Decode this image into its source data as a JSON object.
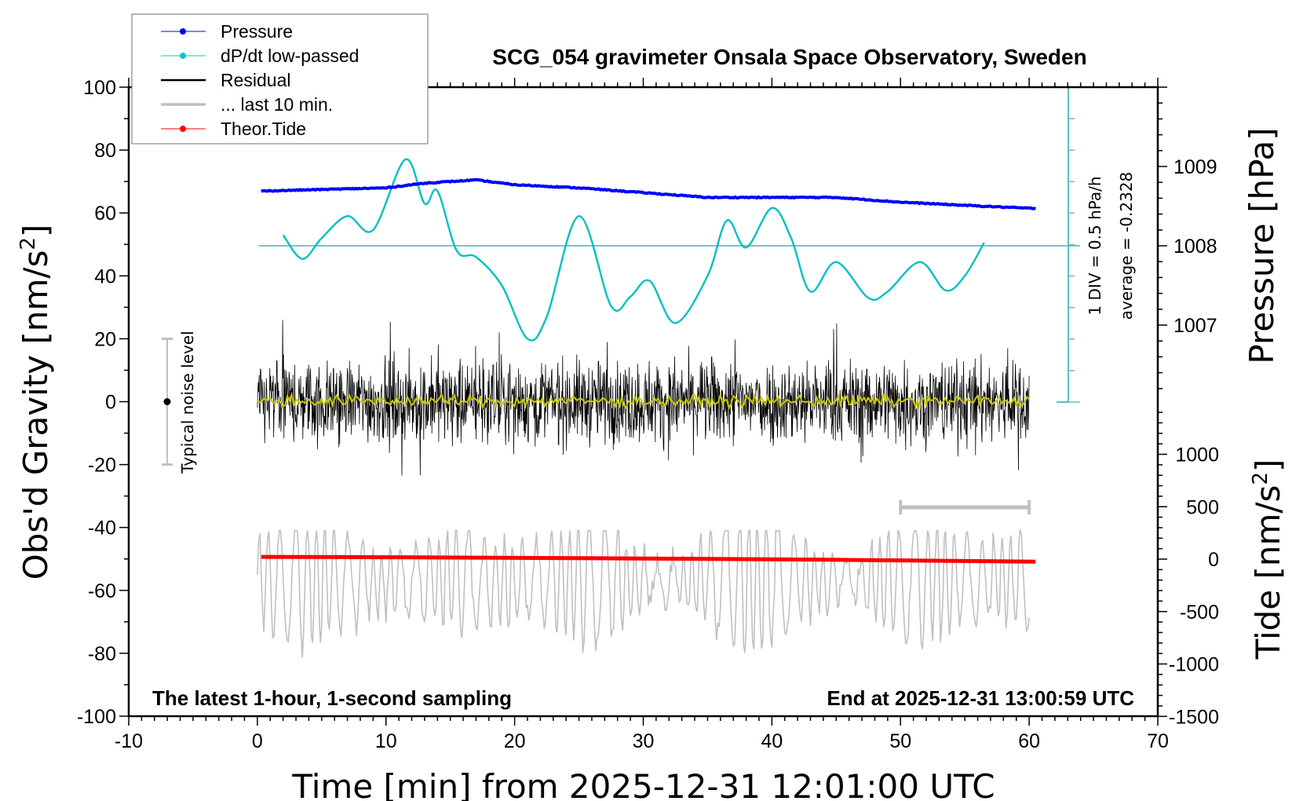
{
  "chart_data": {
    "type": "line",
    "title": "SCG_054 gravimeter Onsala Space Observatory, Sweden",
    "xlabel": "Time [min] from 2025-12-31 12:01:00 UTC",
    "ylabel_left": "Obs'd Gravity [nm/s",
    "ylabel_left_sup": "2",
    "ylabel_left_end": "]",
    "ylabel_right_top": "Pressure [hPa]",
    "ylabel_right_bottom": "Tide [nm/s",
    "ylabel_right_bottom_sup": "2",
    "ylabel_right_bottom_end": "]",
    "xlim": [
      -10,
      70
    ],
    "ylim_left": [
      -100,
      100
    ],
    "ylim_pressure": [
      1006,
      1010
    ],
    "ylim_tide": [
      -1500,
      1500
    ],
    "x_ticks": [
      "-10",
      "0",
      "10",
      "20",
      "30",
      "40",
      "50",
      "60",
      "70"
    ],
    "y_left_ticks": [
      "100",
      "80",
      "60",
      "40",
      "20",
      "0",
      "-20",
      "-40",
      "-60",
      "-80",
      "-100"
    ],
    "pressure_ticks": [
      "1009",
      "1008",
      "1007"
    ],
    "tide_ticks": [
      "1000",
      "500",
      "0",
      "-500",
      "-1000",
      "-1500"
    ],
    "legend": {
      "placement": "top-left",
      "entries": [
        {
          "label": "Pressure",
          "color": "#0000ff"
        },
        {
          "label": "dP/dt low-passed",
          "color": "#00c8c8"
        },
        {
          "label": "Residual",
          "color": "#000000"
        },
        {
          "label": "... last 10 min.",
          "color": "#c0c0c0"
        },
        {
          "label": "Theor.Tide",
          "color": "#ff0000"
        }
      ]
    },
    "annotations": {
      "bottom_left": "The latest 1-hour, 1-second sampling",
      "bottom_right": "End at 2025-12-31 13:00:59 UTC",
      "noise_label": "Typical noise level",
      "dpdt_scale": "1 DIV = 0.5 hPa/h",
      "dpdt_average": "average = -0.2328"
    },
    "noise_level_range": [
      -20,
      20
    ],
    "last10_scale_bar_minutes": [
      50,
      60
    ],
    "series": [
      {
        "name": "Pressure",
        "unit": "hPa",
        "color": "#0000ff",
        "x": [
          0.3,
          5,
          10,
          13,
          17,
          20,
          25,
          30,
          35,
          40,
          45,
          50,
          55,
          60.5
        ],
        "y": [
          1008.69,
          1008.71,
          1008.73,
          1008.79,
          1008.83,
          1008.77,
          1008.73,
          1008.67,
          1008.61,
          1008.61,
          1008.61,
          1008.55,
          1008.51,
          1008.47
        ]
      },
      {
        "name": "dP/dt low-passed",
        "unit": "hPa/h",
        "color": "#00c0c0",
        "x": [
          2,
          3.5,
          5,
          7,
          9,
          11.5,
          13,
          14,
          15.5,
          17,
          19,
          21,
          22.5,
          25,
          27.5,
          29,
          30.5,
          32.5,
          35,
          36.5,
          38,
          40,
          41.5,
          43,
          45,
          47.5,
          49,
          51.5,
          53.5,
          55,
          56.5
        ],
        "y": [
          0.15,
          -0.23,
          0.1,
          0.45,
          0.23,
          1.35,
          0.65,
          0.85,
          -0.1,
          -0.2,
          -0.65,
          -1.5,
          -1.15,
          0.45,
          -0.98,
          -0.83,
          -0.58,
          -1.25,
          -0.5,
          0.38,
          -0.05,
          0.58,
          0.1,
          -0.75,
          -0.28,
          -0.85,
          -0.75,
          -0.28,
          -0.73,
          -0.5,
          0.03
        ]
      },
      {
        "name": "Residual",
        "unit": "nm/s2",
        "color": "#000000",
        "x_range": [
          0,
          60
        ],
        "amplitude_typical": 12,
        "range": [
          -26,
          26
        ]
      },
      {
        "name": "Residual smoothed",
        "unit": "nm/s2",
        "color": "#c8c800",
        "x_range": [
          0,
          60
        ],
        "range": [
          -2,
          3
        ]
      },
      {
        "name": "... last 10 min.",
        "unit": "nm/s2",
        "color": "#c0c0c0",
        "offset": -60,
        "range": [
          -87,
          -41
        ]
      },
      {
        "name": "Theor.Tide",
        "unit": "nm/s2",
        "color": "#ff0000",
        "x": [
          0.3,
          10,
          20,
          30,
          40,
          50,
          60.5
        ],
        "y": [
          22,
          18,
          12,
          6,
          -2,
          -12,
          -24
        ]
      }
    ]
  }
}
